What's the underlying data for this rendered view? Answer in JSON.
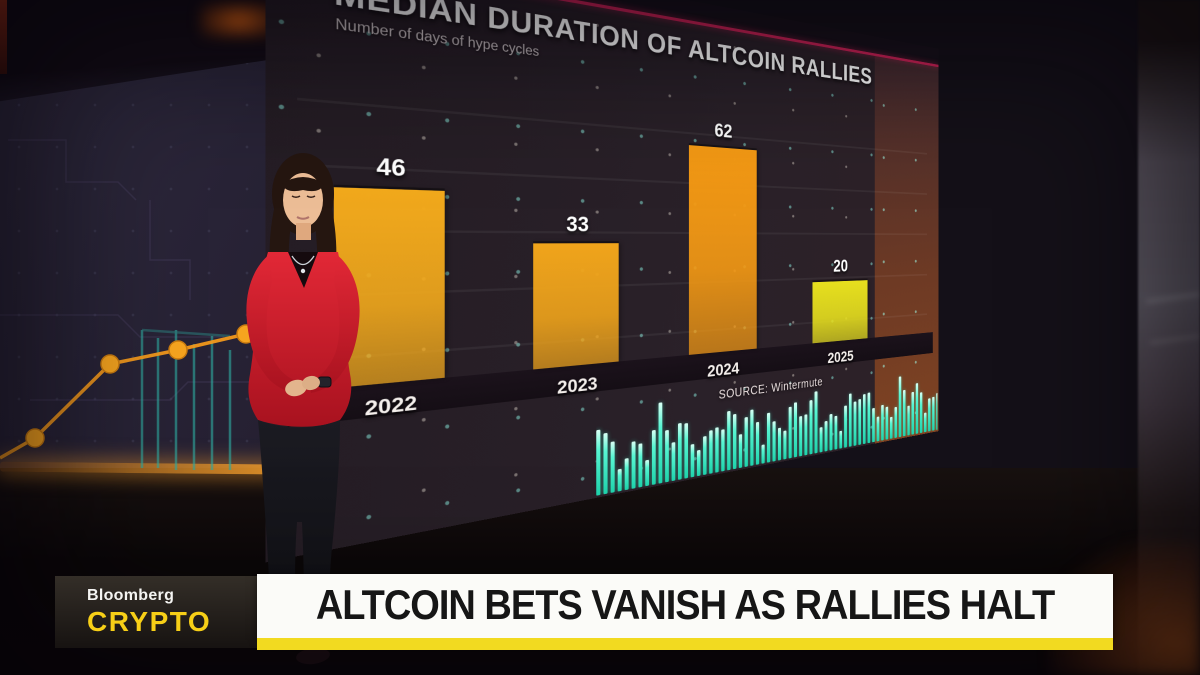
{
  "chyron": {
    "network": "Bloomberg",
    "show": "CRYPTO",
    "headline": "ALTCOIN BETS VANISH AS RALLIES HALT"
  },
  "chart_data": {
    "type": "bar",
    "title": "MEDIAN DURATION OF ALTCOIN RALLIES",
    "subtitle": "Number of days of hype cycles",
    "categories": [
      "2022",
      "2023",
      "2024",
      "2025"
    ],
    "values": [
      46,
      33,
      62,
      20
    ],
    "bar_colors": [
      "#f2a91c",
      "#f0a41b",
      "#f59a14",
      "#e6df1e"
    ],
    "ylim": [
      0,
      70
    ],
    "grid": true,
    "legend": false,
    "value_labels": true,
    "source": "SOURCE: Wintermute",
    "accent_line_color": "#cb2256",
    "value_label_color": "#ffffff"
  },
  "colors": {
    "brand_yellow": "#f7cf17",
    "headline_bg": "#fbfbf8",
    "headline_text": "#161616",
    "headline_underline": "#f2da20",
    "waveform_cyan": "#2fe8c4",
    "wall_chart_orange": "#f2991c",
    "wall_chart_teal": "#2fa89e"
  },
  "decor": {
    "waveform_bar_count": 86,
    "gridline_count": 5
  }
}
